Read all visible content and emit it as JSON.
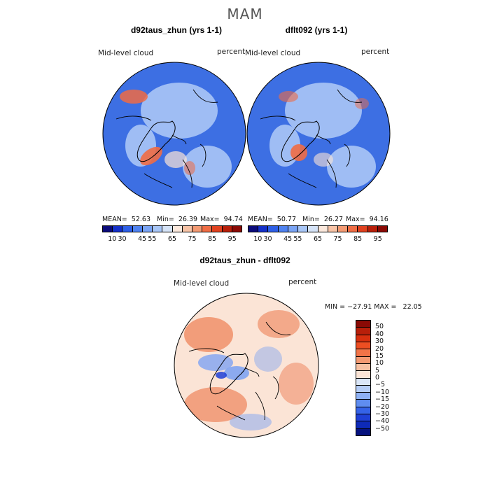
{
  "figure": {
    "season": "MAM"
  },
  "colors": {
    "abs_scale": [
      "#0b0b7a",
      "#1430c8",
      "#2e5fe6",
      "#4f82f0",
      "#7aa4f4",
      "#a8c6f6",
      "#d5e3f7",
      "#fbe8dc",
      "#f7c3a6",
      "#f39a73",
      "#ef6d45",
      "#e0411f",
      "#b81f0a",
      "#8a0a05"
    ],
    "diff_scale": [
      "#8a0a05",
      "#b81f0a",
      "#d8300f",
      "#ee4e22",
      "#f27448",
      "#f49a72",
      "#f7c1a3",
      "#fbe4d6",
      "#dae6f8",
      "#b5cdf6",
      "#8eb1f4",
      "#5f8df0",
      "#3563e8",
      "#1f40d6",
      "#0e2ab8",
      "#06127f"
    ],
    "ocean_blue": "#3d6fe3",
    "land_blue": "#9fbdf4",
    "warm": "#ef6b44",
    "diff_red": "#f0906a",
    "diff_blue": "#7fa3f2"
  },
  "panels": [
    {
      "title": "d92taus_zhun (yrs 1-1)",
      "variable": "Mid-level cloud",
      "units": "percent",
      "stats": {
        "mean": "MEAN=  52.63",
        "min": "Min=  26.39",
        "max": "Max=  94.74"
      },
      "colorbar_ticks": [
        "10",
        "30",
        "45",
        "55",
        "65",
        "75",
        "85",
        "95"
      ]
    },
    {
      "title": "dflt092 (yrs 1-1)",
      "variable": "Mid-level cloud",
      "units": "percent",
      "stats": {
        "mean": "MEAN=  50.77",
        "min": "Min=  26.27",
        "max": "Max=  94.16"
      },
      "colorbar_ticks": [
        "10",
        "30",
        "45",
        "55",
        "65",
        "75",
        "85",
        "95"
      ]
    }
  ],
  "difference": {
    "title": "d92taus_zhun - dflt092",
    "variable": "Mid-level cloud",
    "units": "percent",
    "minmax": "MIN = −27.91 MAX =   22.05",
    "colorbar_ticks": [
      "50",
      "40",
      "30",
      "20",
      "15",
      "10",
      "5",
      "0",
      "−5",
      "−10",
      "−15",
      "−20",
      "−30",
      "−40",
      "−50"
    ]
  }
}
